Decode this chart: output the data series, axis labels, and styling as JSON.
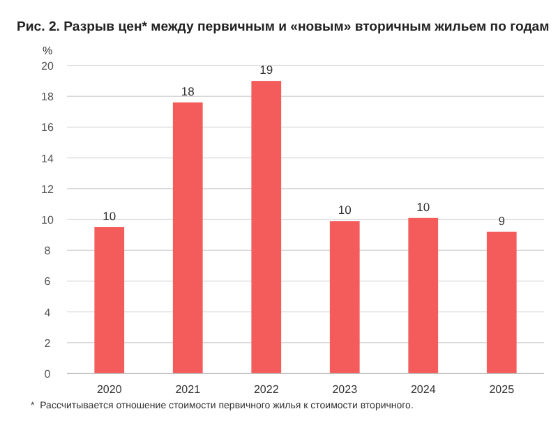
{
  "chart_data": {
    "type": "bar",
    "title": "Рис. 2. Разрыв цен* между первичным и «новым» вторичным жильем по годам",
    "ylabel": "%",
    "categories": [
      "2020",
      "2021",
      "2022",
      "2023",
      "2024",
      "2025"
    ],
    "values": [
      9.5,
      17.6,
      19,
      9.9,
      10.1,
      9.2
    ],
    "value_labels": [
      "10",
      "18",
      "19",
      "10",
      "10",
      "9"
    ],
    "color": "#f45b5b",
    "ylim": [
      0,
      20
    ],
    "yticks": [
      0,
      2,
      4,
      6,
      8,
      10,
      12,
      14,
      16,
      18,
      20
    ],
    "grid": "y",
    "annotations": [
      "*  Рассчитывается отношение стоимости первичного жилья к стоимости вторичного."
    ]
  }
}
